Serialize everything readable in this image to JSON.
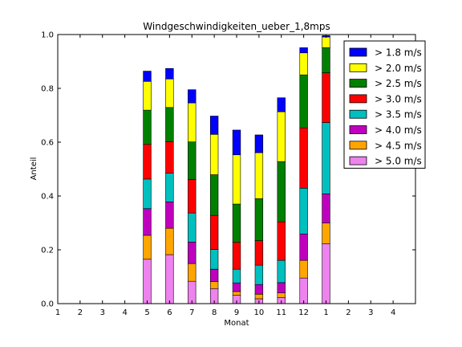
{
  "chart_data": {
    "type": "bar",
    "stacked": true,
    "title": "Windgeschwindigkeiten_ueber_1,8mps",
    "xlabel": "Monat",
    "ylabel": "Anteil",
    "xlim": [
      1,
      17
    ],
    "ylim": [
      0,
      1
    ],
    "x_tick_labels": [
      "1",
      "2",
      "3",
      "4",
      "5",
      "6",
      "7",
      "8",
      "9",
      "10",
      "11",
      "12",
      "1",
      "2",
      "3",
      "4"
    ],
    "y_tick_labels": [
      "0.0",
      "0.2",
      "0.4",
      "0.6",
      "0.8",
      "1.0"
    ],
    "categories": [
      "5",
      "6",
      "7",
      "8",
      "9",
      "10",
      "11",
      "12",
      "1"
    ],
    "x": [
      5,
      6,
      7,
      8,
      9,
      10,
      11,
      12,
      13
    ],
    "grid": false,
    "legend_position": "top-right",
    "series": [
      {
        "name": "> 5.0 m/s",
        "color": "#ee82ee",
        "values": [
          0.165,
          0.182,
          0.083,
          0.056,
          0.031,
          0.018,
          0.022,
          0.095,
          0.222
        ]
      },
      {
        "name": "> 4.5 m/s",
        "color": "#ffa500",
        "values": [
          0.089,
          0.098,
          0.066,
          0.026,
          0.014,
          0.017,
          0.018,
          0.066,
          0.078
        ]
      },
      {
        "name": "> 4.0 m/s",
        "color": "#bf00bf",
        "values": [
          0.099,
          0.098,
          0.08,
          0.046,
          0.032,
          0.036,
          0.038,
          0.098,
          0.108
        ]
      },
      {
        "name": "> 3.5 m/s",
        "color": "#00bfbf",
        "values": [
          0.11,
          0.107,
          0.108,
          0.073,
          0.051,
          0.072,
          0.083,
          0.17,
          0.265
        ]
      },
      {
        "name": "> 3.0 m/s",
        "color": "#ff0000",
        "values": [
          0.129,
          0.117,
          0.124,
          0.127,
          0.1,
          0.091,
          0.143,
          0.224,
          0.185
        ]
      },
      {
        "name": "> 2.5 m/s",
        "color": "#008000",
        "values": [
          0.127,
          0.127,
          0.14,
          0.151,
          0.142,
          0.156,
          0.224,
          0.197,
          0.093
        ]
      },
      {
        "name": "> 2.0 m/s",
        "color": "#ffff00",
        "values": [
          0.107,
          0.106,
          0.145,
          0.15,
          0.183,
          0.171,
          0.185,
          0.082,
          0.04
        ]
      },
      {
        "name": "> 1.8 m/s",
        "color": "#0000ff",
        "values": [
          0.038,
          0.039,
          0.049,
          0.068,
          0.092,
          0.066,
          0.052,
          0.019,
          0.005
        ]
      }
    ]
  }
}
